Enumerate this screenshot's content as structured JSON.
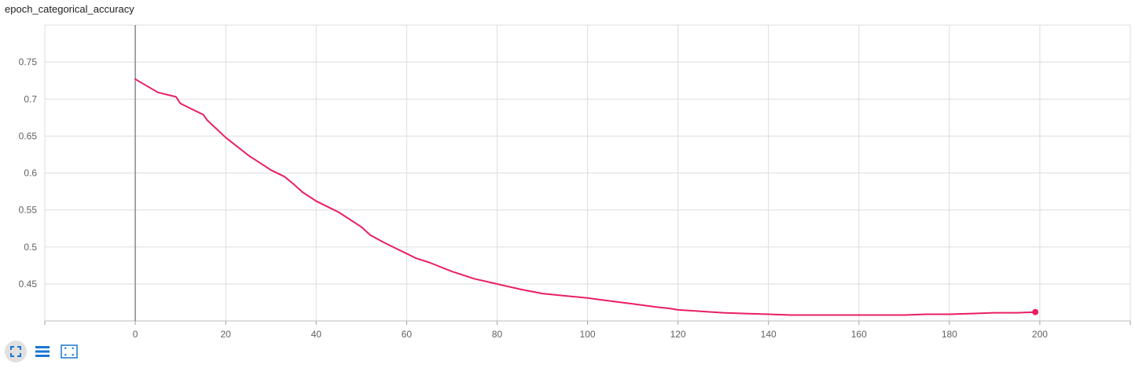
{
  "chart_title": "epoch_categorical_accuracy",
  "toolbar": {
    "buttons": [
      {
        "icon": "fullscreen-icon",
        "active": true
      },
      {
        "icon": "data-list-icon",
        "active": false
      },
      {
        "icon": "fit-domain-icon",
        "active": false
      }
    ]
  },
  "colors": {
    "series": "#e91e63",
    "grid": "#dddddd",
    "zero_axis": "#888888",
    "icon": "#1976d2"
  },
  "chart_data": {
    "type": "line",
    "title": "epoch_categorical_accuracy",
    "xlabel": "",
    "ylabel": "",
    "xlim": [
      -20,
      220
    ],
    "ylim": [
      0.4,
      0.8
    ],
    "x_ticks": [
      0,
      20,
      40,
      60,
      80,
      100,
      120,
      140,
      160,
      180,
      200
    ],
    "y_ticks": [
      0.45,
      0.5,
      0.55,
      0.6,
      0.65,
      0.7,
      0.75
    ],
    "y_tick_labels": [
      "0.45",
      "0.5",
      "0.55",
      "0.6",
      "0.65",
      "0.7",
      "0.75"
    ],
    "grid": true,
    "series": [
      {
        "color": "#e91e63",
        "x": [
          0,
          5,
          9,
          10,
          12,
          15,
          16,
          20,
          25,
          30,
          33,
          35,
          37,
          40,
          43,
          45,
          50,
          52,
          55,
          58,
          60,
          62,
          65,
          70,
          75,
          80,
          85,
          90,
          95,
          100,
          105,
          110,
          115,
          118,
          120,
          125,
          130,
          135,
          140,
          145,
          150,
          155,
          160,
          165,
          170,
          175,
          180,
          185,
          190,
          195,
          199
        ],
        "y": [
          0.727,
          0.709,
          0.703,
          0.694,
          0.688,
          0.679,
          0.671,
          0.648,
          0.624,
          0.604,
          0.595,
          0.585,
          0.574,
          0.562,
          0.553,
          0.547,
          0.527,
          0.516,
          0.506,
          0.497,
          0.491,
          0.485,
          0.479,
          0.467,
          0.457,
          0.45,
          0.443,
          0.437,
          0.434,
          0.431,
          0.427,
          0.423,
          0.419,
          0.417,
          0.415,
          0.413,
          0.411,
          0.41,
          0.409,
          0.408,
          0.408,
          0.408,
          0.408,
          0.408,
          0.408,
          0.409,
          0.409,
          0.41,
          0.411,
          0.411,
          0.412
        ]
      }
    ]
  }
}
